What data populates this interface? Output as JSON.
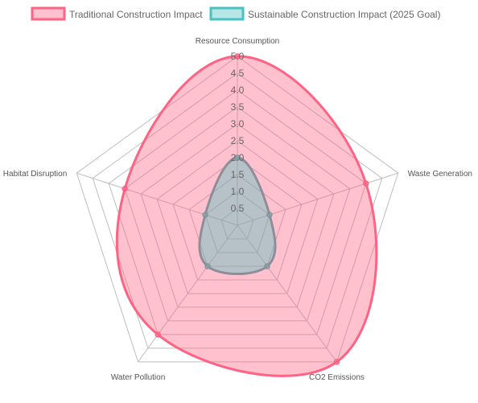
{
  "chart_data": {
    "type": "radar",
    "axes": [
      "Resource Consumption",
      "Waste Generation",
      "CO2 Emissions",
      "Water Pollution",
      "Habitat Disruption"
    ],
    "r_range": [
      0,
      5
    ],
    "tick_step": 0.5,
    "tick_labels": [
      "0.5",
      "1.0",
      "1.5",
      "2.0",
      "2.5",
      "3.0",
      "3.5",
      "4.0",
      "4.5",
      "5.0"
    ],
    "grid": true,
    "legend_position": "top",
    "series": [
      {
        "name": "Traditional Construction Impact",
        "values": [
          5.0,
          4.0,
          5.0,
          4.0,
          3.5
        ],
        "border_color": "#ff6384",
        "fill_color": "rgba(255, 99, 132, 0.4)"
      },
      {
        "name": "Sustainable Construction Impact (2025 Goal)",
        "values": [
          2.0,
          1.0,
          1.5,
          1.5,
          1.0
        ],
        "border_color": "#4bc0c0",
        "fill_color": "rgba(75, 192, 192, 0.4)"
      }
    ]
  }
}
